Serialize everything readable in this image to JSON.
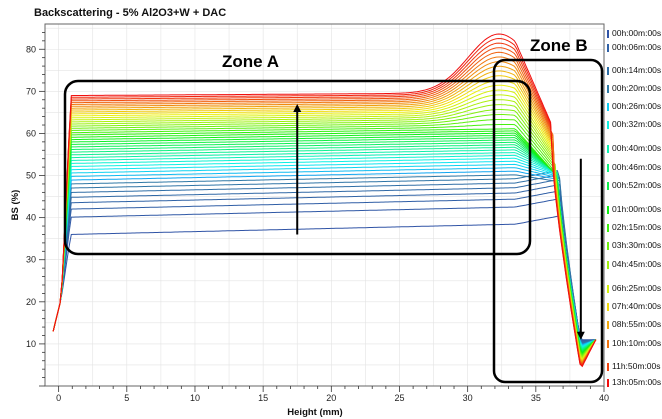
{
  "chart_data": {
    "type": "line",
    "title": "Backscattering - 5% Al2O3+W + DAC",
    "xlabel": "Height (mm)",
    "ylabel": "BS (%)",
    "xlim": [
      -1,
      40
    ],
    "ylim": [
      0,
      86
    ],
    "x_ticks": [
      "0",
      "5",
      "10",
      "15",
      "20",
      "25",
      "30",
      "35",
      "40"
    ],
    "y_ticks": [
      "10",
      "20",
      "30",
      "40",
      "50",
      "60",
      "70",
      "80"
    ],
    "grid": true,
    "legend_position": "right",
    "legend": [
      "00h:00m:00s",
      "00h:06m:00s",
      "00h:14m:00s",
      "00h:20m:00s",
      "00h:26m:00s",
      "00h:32m:00s",
      "00h:40m:00s",
      "00h:46m:00s",
      "00h:52m:00s",
      "01h:00m:00s",
      "02h:15m:00s",
      "03h:30m:00s",
      "04h:45m:00s",
      "06h:25m:00s",
      "07h:40m:00s",
      "08h:55m:00s",
      "10h:10m:00s",
      "11h:50m:00s",
      "13h:05m:00s"
    ],
    "annotations": [
      {
        "text": "Zone A",
        "region_x": [
          0.3,
          35.2
        ],
        "region_y": [
          33,
          80
        ]
      },
      {
        "text": "Zone B",
        "region_x": [
          35.2,
          40
        ],
        "region_y": [
          4,
          79
        ]
      }
    ],
    "arrows": [
      {
        "x": 17.5,
        "from": 36,
        "to": 67
      },
      {
        "x": 38.3,
        "from": 54,
        "to": 11
      }
    ],
    "series_count": 45,
    "representative_series": [
      {
        "name": "earliest",
        "x": [
          0,
          1,
          5,
          10,
          20,
          30,
          35,
          37,
          38,
          39.4
        ],
        "values": [
          14,
          36,
          36.5,
          36.5,
          36.6,
          36.8,
          37.2,
          40,
          11,
          11
        ]
      },
      {
        "name": "latest",
        "x": [
          0,
          1,
          5,
          10,
          20,
          28,
          31,
          32.5,
          34,
          36,
          37,
          38,
          39.4
        ],
        "values": [
          14,
          69,
          69.5,
          69.8,
          70.2,
          71,
          77,
          83.8,
          78,
          55,
          30,
          5,
          11
        ]
      }
    ],
    "colors": {
      "early": "#2a50a8",
      "late": "#e62020",
      "box": "#000000"
    }
  }
}
